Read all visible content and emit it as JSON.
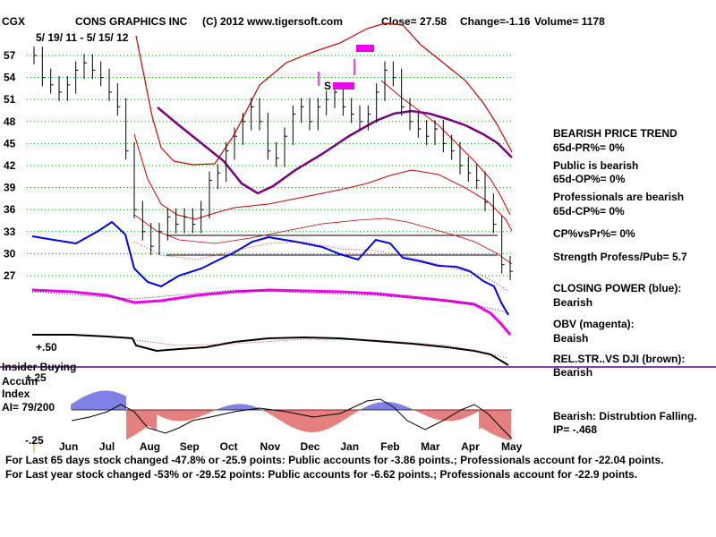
{
  "chart_data": {
    "type": "line",
    "ticker": "CGX",
    "company": "CONS GRAPHICS INC",
    "copyright": "(C) 2012 www.tigersoft.com",
    "close_label": "Close=  27.58",
    "change_label": "Change=-1.16",
    "volume_label": "Volume= 1178",
    "date_range": "5/ 19/ 11 - 5/ 15/ 12",
    "price_ticks": [
      "57",
      "54",
      "51",
      "48",
      "45",
      "42",
      "39",
      "36",
      "33",
      "30",
      "27"
    ],
    "price_tick_values": [
      57,
      54,
      51,
      48,
      45,
      42,
      39,
      36,
      33,
      30,
      27
    ],
    "ylim": [
      25.5,
      58.5
    ],
    "months": [
      "Jun",
      "Jul",
      "Aug",
      "Sep",
      "Oct",
      "Nov",
      "Dec",
      "Jan",
      "Feb",
      "Mar",
      "Apr",
      "May"
    ],
    "price": [
      57,
      54,
      53,
      52,
      53,
      55,
      56,
      55,
      54,
      52,
      50,
      44,
      36,
      33,
      31,
      33,
      35,
      34,
      35,
      34,
      36,
      40,
      41,
      44,
      46,
      48,
      50,
      48,
      44,
      43,
      46,
      49,
      50,
      48,
      50,
      51,
      52,
      50,
      49,
      48,
      49,
      52,
      55,
      54,
      50,
      48,
      47,
      46,
      47,
      45,
      44,
      42,
      41,
      40,
      37,
      34,
      28.5,
      27.6
    ],
    "annotations": [
      "S",
      "+.50",
      "+.25",
      "-.25"
    ],
    "series": [
      {
        "name": "Closing Power (blue)",
        "color": "#0000ee"
      },
      {
        "name": "OBV (magenta)",
        "color": "#ee00ee"
      },
      {
        "name": "Rel.Str. vs DJI (brown)",
        "color": "#000000"
      },
      {
        "name": "Accumulation Index",
        "color": "#0000cc"
      }
    ]
  },
  "left_labels": {
    "insider": "Insider Buying",
    "accum": "Accum",
    "index": "Index",
    "ai": "AI= 79/200"
  },
  "side_panel": {
    "trend_title": "BEARISH PRICE TREND",
    "pr": "65d-PR%= 0%",
    "public": "Public is bearish",
    "op": "65d-OP%= 0%",
    "pros": "Professionals are bearish",
    "cp": "65d-CP%= 0%",
    "cpvspr": "CP%vsPr%=  0%",
    "strength": "Strength Profess/Pub= 5.7",
    "cp_title": "CLOSING POWER (blue):",
    "cp_value": "Bearish",
    "obv_title": "OBV (magenta):",
    "obv_value": "Beaish",
    "rel_title": "REL.STR..VS DJI (brown):",
    "rel_value": "Bearish",
    "dist": "Bearish: Distrubtion Falling.",
    "ip": "IP= -.468"
  },
  "footer": {
    "line1": "For Last 65 days stock changed -47.8% or -25.9 points:  Public accounts for -3.86 points.;  Professionals account for -22.04 points.",
    "line2": "For Last year stock changed -53% or -29.52 points:  Public accounts for -6.62 points.;  Professionals account for -22.9 points."
  },
  "colors": {
    "price": "#000000",
    "band": "#cc0000",
    "ma": "#7a0080",
    "closing_power": "#0000ee",
    "obv": "#ee00ee",
    "accum_pos": "#0000cc",
    "accum_neg": "#cc0000",
    "signal": "#ee00ee",
    "grid": "#009900"
  }
}
